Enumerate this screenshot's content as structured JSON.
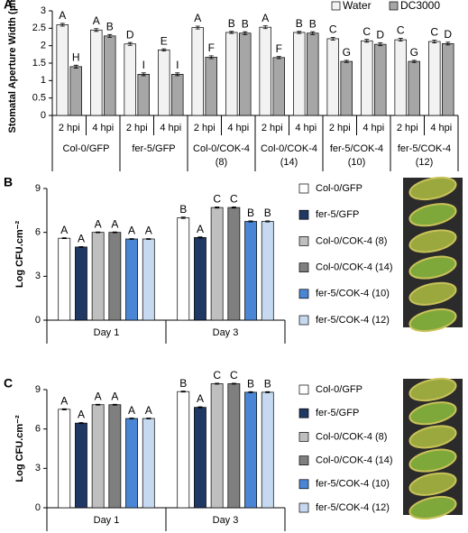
{
  "chart_data": [
    {
      "type": "bar",
      "panel": "A",
      "ylabel": "Stomatal Aperture Width (µm)",
      "categories": [
        "2 hpi",
        "4 hpi",
        "2 hpi",
        "4 hpi",
        "2 hpi",
        "4 hpi",
        "2 hpi",
        "4 hpi",
        "2 hpi",
        "4 hpi",
        "2 hpi",
        "4 hpi"
      ],
      "groups": [
        [
          "Col-0/GFP"
        ],
        [
          "fer-5/GFP"
        ],
        [
          "Col-0/COK-4",
          "(8)"
        ],
        [
          "Col-0/COK-4",
          "(14)"
        ],
        [
          "fer-5/COK-4",
          "(10)"
        ],
        [
          "fer-5/COK-4",
          "(12)"
        ]
      ],
      "series": [
        {
          "name": "Water",
          "color": "#f2f2f2",
          "values": [
            2.6,
            2.45,
            2.05,
            1.88,
            2.52,
            2.38,
            2.53,
            2.38,
            2.2,
            2.14,
            2.17,
            2.12
          ],
          "errors": [
            0.04,
            0.04,
            0.04,
            0.03,
            0.04,
            0.03,
            0.04,
            0.03,
            0.04,
            0.04,
            0.04,
            0.04
          ],
          "letters": [
            "A",
            "A",
            "D",
            "E",
            "A",
            "B",
            "A",
            "B",
            "C",
            "C",
            "C",
            "C"
          ]
        },
        {
          "name": "DC3000",
          "color": "#a6a6a6",
          "values": [
            1.4,
            2.28,
            1.18,
            1.18,
            1.67,
            2.36,
            1.66,
            2.36,
            1.55,
            2.04,
            1.55,
            2.06
          ],
          "errors": [
            0.04,
            0.04,
            0.04,
            0.04,
            0.04,
            0.04,
            0.03,
            0.04,
            0.03,
            0.04,
            0.03,
            0.04
          ],
          "letters": [
            "H",
            "B",
            "I",
            "I",
            "F",
            "B",
            "F",
            "B",
            "G",
            "D",
            "G",
            "D"
          ]
        }
      ],
      "ylim": [
        0,
        3
      ],
      "yticks": [
        0,
        0.5,
        1,
        1.5,
        2,
        2.5,
        3
      ],
      "legend": "top-right"
    },
    {
      "type": "bar",
      "panel": "B",
      "ylabel": "Log CFU.cm⁻²",
      "categories": [
        "Day 1",
        "Day 3"
      ],
      "series": [
        {
          "name": "Col-0/GFP",
          "color": "#ffffff",
          "values": [
            5.6,
            7.0
          ],
          "errors": [
            0.03,
            0.05
          ],
          "letters": [
            "A",
            "B"
          ]
        },
        {
          "name": "fer-5/GFP",
          "color": "#1f3864",
          "values": [
            5.0,
            5.65
          ],
          "errors": [
            0.03,
            0.04
          ],
          "letters": [
            "A",
            "A"
          ]
        },
        {
          "name": "Col-0/COK-4 (8)",
          "color": "#bfbfbf",
          "values": [
            6.0,
            7.7
          ],
          "errors": [
            0.03,
            0.04
          ],
          "letters": [
            "A",
            "C"
          ]
        },
        {
          "name": "Col-0/COK-4 (14)",
          "color": "#7f7f7f",
          "values": [
            6.0,
            7.7
          ],
          "errors": [
            0.03,
            0.04
          ],
          "letters": [
            "A",
            "C"
          ]
        },
        {
          "name": "fer-5/COK-4 (10)",
          "color": "#4a86d4",
          "values": [
            5.55,
            6.75
          ],
          "errors": [
            0.03,
            0.04
          ],
          "letters": [
            "A",
            "B"
          ]
        },
        {
          "name": "fer-5/COK-4 (12)",
          "color": "#c6d9f1",
          "values": [
            5.55,
            6.75
          ],
          "errors": [
            0.03,
            0.04
          ],
          "letters": [
            "A",
            "B"
          ]
        }
      ],
      "ylim": [
        0,
        9
      ],
      "yticks": [
        0,
        3,
        6,
        9
      ],
      "legend": "right"
    },
    {
      "type": "bar",
      "panel": "C",
      "ylabel": "Log CFU.cm⁻²",
      "categories": [
        "Day 1",
        "Day 3"
      ],
      "series": [
        {
          "name": "Col-0/GFP",
          "color": "#ffffff",
          "values": [
            7.5,
            8.85
          ],
          "errors": [
            0.04,
            0.04
          ],
          "letters": [
            "A",
            "B"
          ]
        },
        {
          "name": "fer-5/GFP",
          "color": "#1f3864",
          "values": [
            6.45,
            7.65
          ],
          "errors": [
            0.04,
            0.04
          ],
          "letters": [
            "A",
            "A"
          ]
        },
        {
          "name": "Col-0/COK-4 (8)",
          "color": "#bfbfbf",
          "values": [
            7.85,
            9.45
          ],
          "errors": [
            0.03,
            0.04
          ],
          "letters": [
            "A",
            "C"
          ]
        },
        {
          "name": "Col-0/COK-4 (14)",
          "color": "#7f7f7f",
          "values": [
            7.85,
            9.45
          ],
          "errors": [
            0.03,
            0.04
          ],
          "letters": [
            "A",
            "C"
          ]
        },
        {
          "name": "fer-5/COK-4 (10)",
          "color": "#4a86d4",
          "values": [
            6.8,
            8.8
          ],
          "errors": [
            0.03,
            0.04
          ],
          "letters": [
            "A",
            "B"
          ]
        },
        {
          "name": "fer-5/COK-4 (12)",
          "color": "#c6d9f1",
          "values": [
            6.8,
            8.8
          ],
          "errors": [
            0.03,
            0.04
          ],
          "letters": [
            "A",
            "B"
          ]
        }
      ],
      "ylim": [
        0,
        9
      ],
      "yticks": [
        0,
        3,
        6,
        9
      ],
      "legend": "right"
    }
  ]
}
